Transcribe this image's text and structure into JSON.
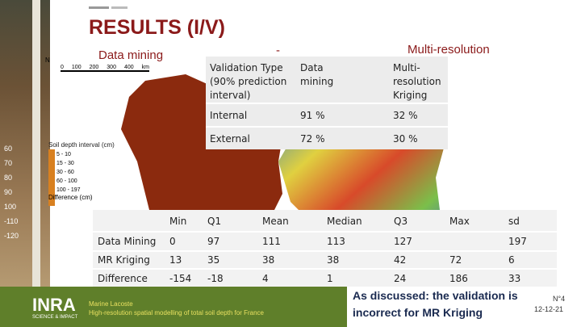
{
  "header": {
    "title": "RESULTS (I/V)",
    "left_label": "Data mining",
    "middle_label": "-",
    "right_label": "Multi-resolution"
  },
  "map": {
    "north": "N",
    "scale": [
      "0",
      "100",
      "200",
      "300",
      "400",
      "km"
    ],
    "legend_title": "Soil depth interval (cm)",
    "legend_items": [
      "5 - 10",
      "15 - 30",
      "30 - 60",
      "60 - 100",
      "100 - 197"
    ],
    "difference_title": "Difference (cm)"
  },
  "ruler": [
    "60",
    "70",
    "80",
    "90",
    "100",
    "-110",
    "-120"
  ],
  "validation_table": {
    "header": [
      "Validation Type (90% prediction interval)",
      "Data mining",
      "Multi-resolution Kriging"
    ],
    "rows": [
      [
        "Internal",
        "91 %",
        "32 %"
      ],
      [
        "External",
        "72 %",
        "30 %"
      ]
    ]
  },
  "stats_table": {
    "header": [
      "Min",
      "Q1",
      "Mean",
      "Median",
      "Q3",
      "Max",
      "sd"
    ],
    "rows": [
      {
        "name": "Data Mining",
        "values": [
          0,
          97,
          111,
          113,
          127,
          null,
          197
        ]
      },
      {
        "name": "MR Kriging",
        "values": [
          13,
          35,
          38,
          38,
          42,
          72,
          6
        ]
      },
      {
        "name": "Difference",
        "values": [
          -154,
          -18,
          4,
          1,
          24,
          186,
          33
        ]
      }
    ]
  },
  "footer": {
    "author": "Marine Lacoste",
    "talk": "High-resolution spatial modelling of total soil depth for France",
    "logo": "INRA",
    "logo_sub": "SCIENCE & IMPACT",
    "note": "As discussed: the validation is incorrect for MR Kriging",
    "page": "N°4",
    "date": "12-12-21"
  }
}
